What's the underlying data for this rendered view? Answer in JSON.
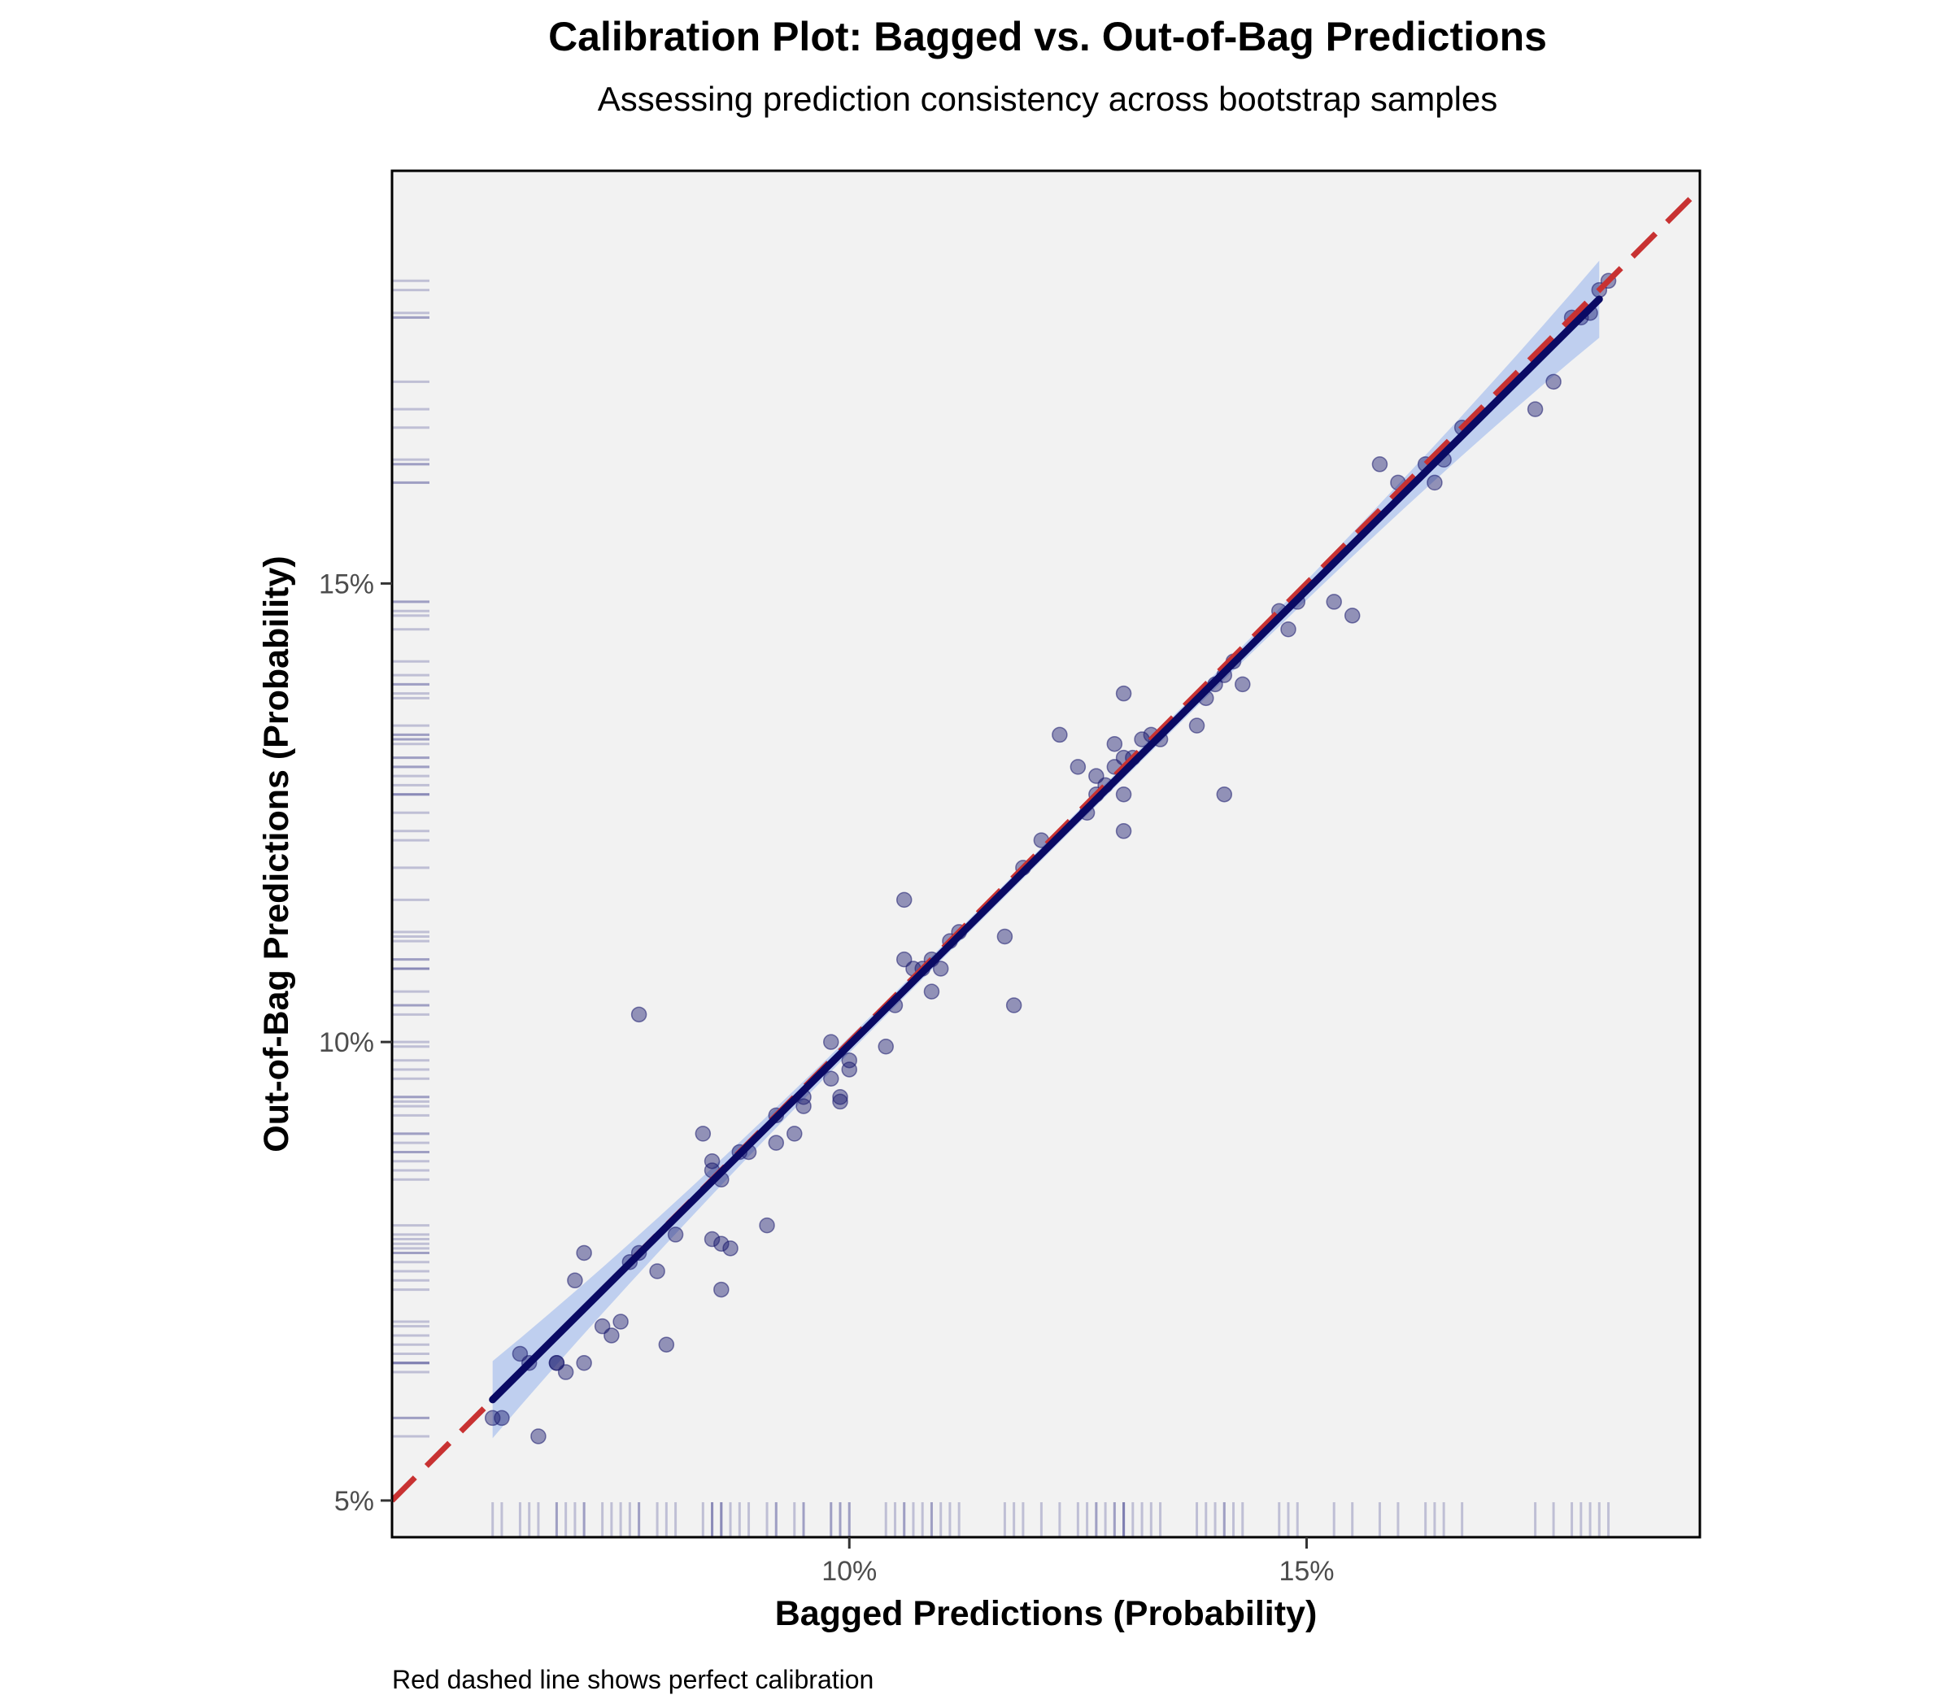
{
  "chart_data": {
    "type": "scatter",
    "title": "Calibration Plot: Bagged vs. Out-of-Bag Predictions",
    "subtitle": "Assessing prediction consistency across bootstrap samples",
    "xlabel": "Bagged Predictions (Probability)",
    "ylabel": "Out-of-Bag Predictions (Probability)",
    "caption": "Red dashed line shows perfect calibration",
    "xlim": [
      5.0,
      19.3
    ],
    "ylim": [
      4.6,
      19.5
    ],
    "x_ticks": [
      10,
      15
    ],
    "x_tick_labels": [
      "10%",
      "15%"
    ],
    "y_ticks": [
      5,
      10,
      15
    ],
    "y_tick_labels": [
      "5%",
      "10%",
      "15%"
    ],
    "grid": false,
    "legend": "none",
    "colors": {
      "panel": "#f2f2f2",
      "points": "#1a1a6e",
      "fit_line": "#0a0a64",
      "ribbon": "#aec3ee",
      "reference_line": "#c83232",
      "rug": "#6b6ba6"
    },
    "reference_line": {
      "slope": 1,
      "intercept": 0,
      "style": "dashed"
    },
    "fit_line": [
      [
        6.1,
        6.1
      ],
      [
        18.2,
        18.1
      ]
    ],
    "x": [
      6.1,
      6.2,
      6.4,
      6.5,
      6.6,
      6.8,
      6.8,
      6.9,
      7.0,
      7.1,
      7.1,
      7.3,
      7.4,
      7.5,
      7.6,
      7.7,
      7.7,
      7.9,
      8.0,
      8.1,
      8.4,
      8.5,
      8.5,
      8.5,
      8.6,
      8.6,
      8.6,
      8.7,
      8.8,
      8.9,
      9.1,
      9.2,
      9.2,
      9.4,
      9.5,
      9.5,
      9.8,
      9.8,
      9.9,
      9.9,
      10.0,
      10.0,
      10.4,
      10.5,
      10.6,
      10.6,
      10.7,
      10.8,
      10.9,
      10.9,
      11.0,
      11.1,
      11.2,
      11.7,
      11.8,
      11.9,
      12.1,
      12.3,
      12.5,
      12.6,
      12.7,
      12.7,
      12.8,
      12.9,
      12.9,
      13.0,
      13.0,
      13.0,
      13.0,
      13.1,
      13.2,
      13.3,
      13.4,
      13.8,
      13.9,
      14.0,
      14.1,
      14.1,
      14.2,
      14.3,
      14.7,
      14.8,
      14.9,
      15.3,
      15.5,
      15.8,
      16.0,
      16.3,
      16.4,
      16.5,
      16.7,
      17.5,
      17.7,
      17.9,
      18.0,
      18.1,
      18.2,
      18.3
    ],
    "y": [
      5.9,
      5.9,
      6.6,
      6.5,
      5.7,
      6.5,
      6.5,
      6.4,
      7.4,
      6.5,
      7.7,
      6.9,
      6.8,
      6.95,
      7.6,
      7.7,
      10.3,
      7.5,
      6.7,
      7.9,
      9.0,
      8.6,
      8.7,
      7.85,
      7.8,
      8.5,
      7.3,
      7.75,
      8.8,
      8.8,
      8.0,
      9.2,
      8.9,
      9.0,
      9.4,
      9.3,
      10.0,
      9.6,
      9.4,
      9.35,
      9.7,
      9.8,
      9.95,
      10.4,
      11.55,
      10.9,
      10.8,
      10.8,
      10.9,
      10.55,
      10.8,
      11.1,
      11.2,
      11.15,
      10.4,
      11.9,
      12.2,
      13.35,
      13.0,
      12.5,
      12.9,
      12.7,
      12.8,
      13.25,
      13.0,
      13.8,
      12.7,
      12.3,
      13.1,
      13.1,
      13.3,
      13.35,
      13.3,
      13.45,
      13.75,
      13.9,
      12.7,
      14.0,
      14.15,
      13.9,
      14.7,
      14.5,
      14.8,
      14.8,
      14.65,
      16.3,
      16.1,
      16.3,
      16.1,
      16.35,
      16.7,
      16.9,
      17.2,
      17.9,
      17.9,
      17.95,
      18.2,
      18.3
    ]
  }
}
